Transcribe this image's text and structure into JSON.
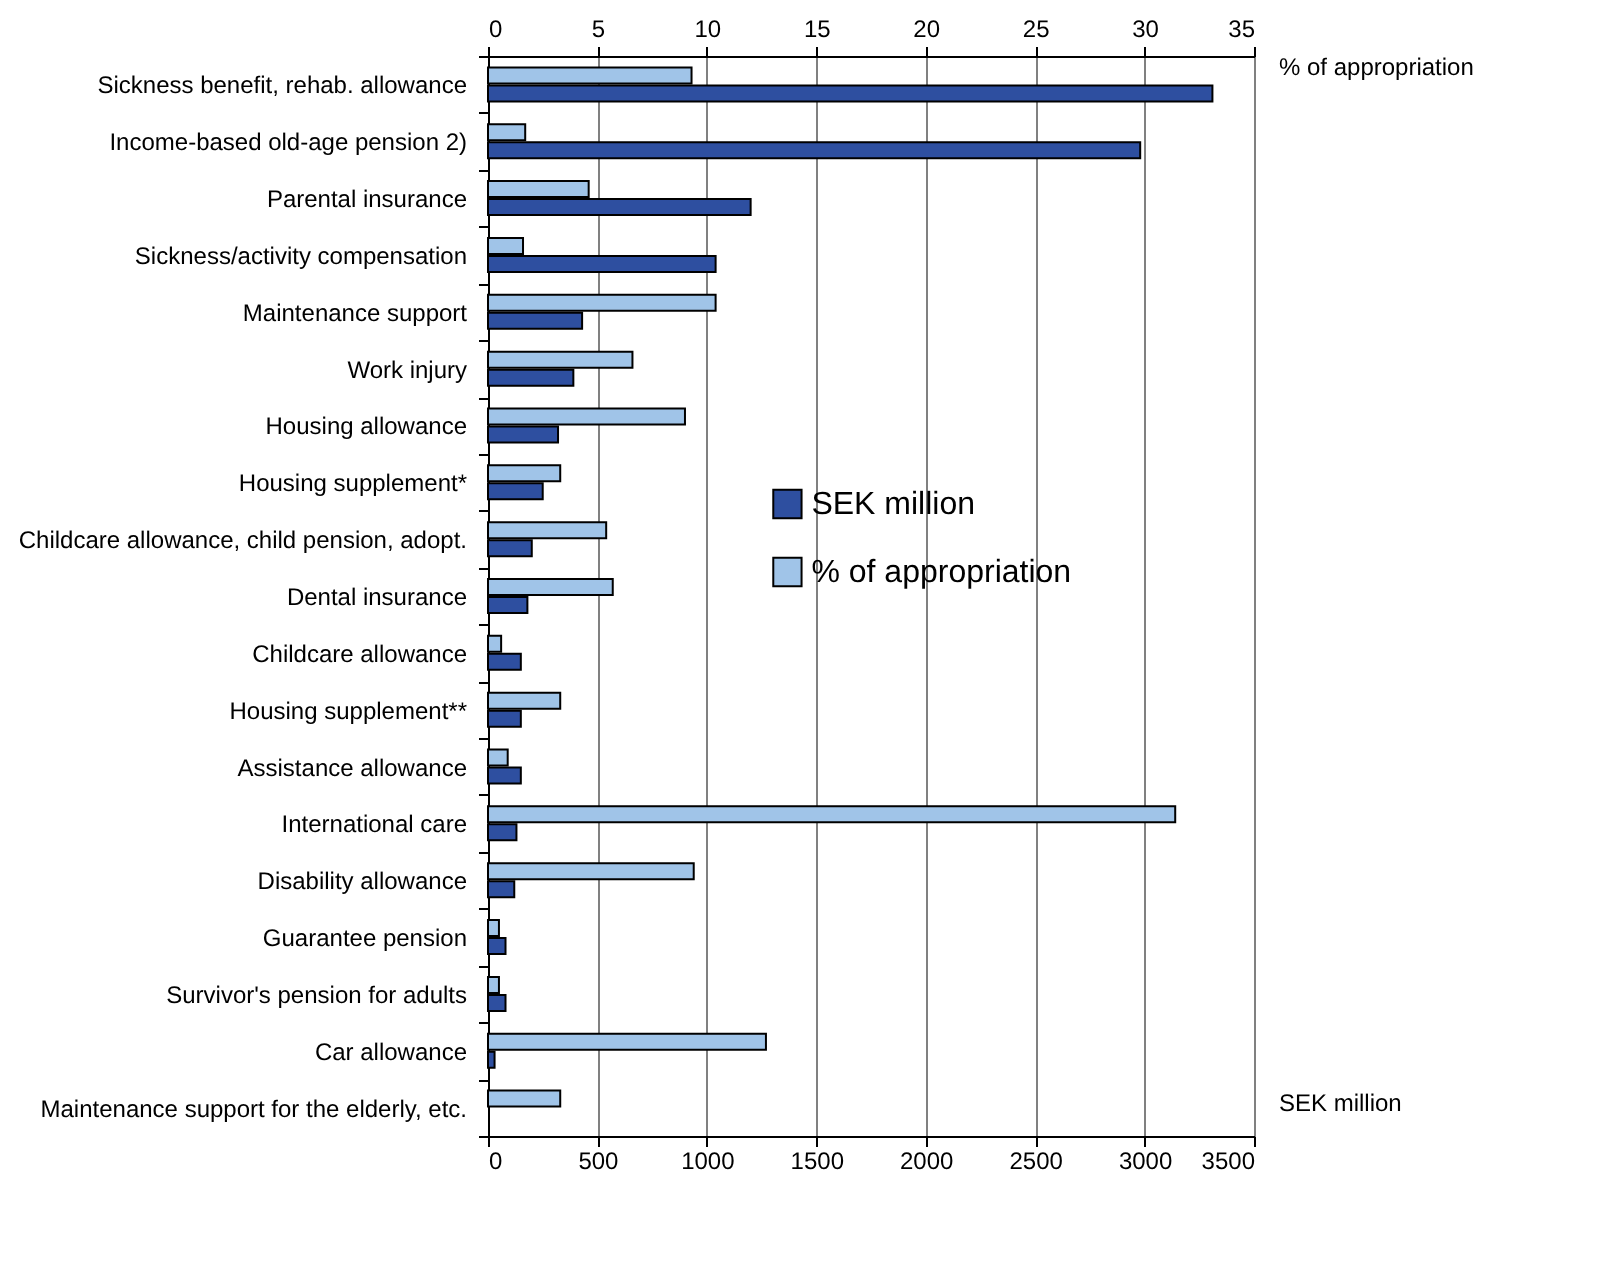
{
  "chart_data": {
    "type": "bar",
    "orientation": "horizontal",
    "categories": [
      "Sickness benefit, rehab. allowance",
      "Income-based old-age pension 2)",
      "Parental insurance",
      "Sickness/activity compensation",
      "Maintenance support",
      "Work injury",
      "Housing allowance",
      "Housing supplement*",
      "Childcare allowance, child pension, adopt.",
      "Dental insurance",
      "Childcare allowance",
      "Housing supplement**",
      "Assistance allowance",
      "International care",
      "Disability allowance",
      "Guarantee pension",
      "Survivor's pension for adults",
      "Car allowance",
      "Maintenance support for the elderly, etc."
    ],
    "series": [
      {
        "name": "SEK million",
        "color": "#2e4fa0",
        "values": [
          3310,
          2980,
          1200,
          1040,
          430,
          390,
          320,
          250,
          200,
          180,
          150,
          150,
          150,
          130,
          120,
          80,
          80,
          30,
          null
        ]
      },
      {
        "name": "% of appropriation",
        "color": "#a0c4e8",
        "axis": "x2",
        "values": [
          9.3,
          1.7,
          4.6,
          1.6,
          10.4,
          6.6,
          9.0,
          3.3,
          5.4,
          5.7,
          0.6,
          3.3,
          0.9,
          31.4,
          9.4,
          0.5,
          0.5,
          12.7,
          3.3
        ]
      }
    ],
    "xlabel": "SEK million",
    "x2label": "% of appropriation",
    "xlim": [
      0,
      3500
    ],
    "xticks": [
      0,
      500,
      1000,
      1500,
      2000,
      2500,
      3000,
      3500
    ],
    "x2lim": [
      0,
      35
    ],
    "x2ticks": [
      0,
      5,
      10,
      15,
      20,
      25,
      30,
      35
    ],
    "grid": "x",
    "legend": "right"
  }
}
